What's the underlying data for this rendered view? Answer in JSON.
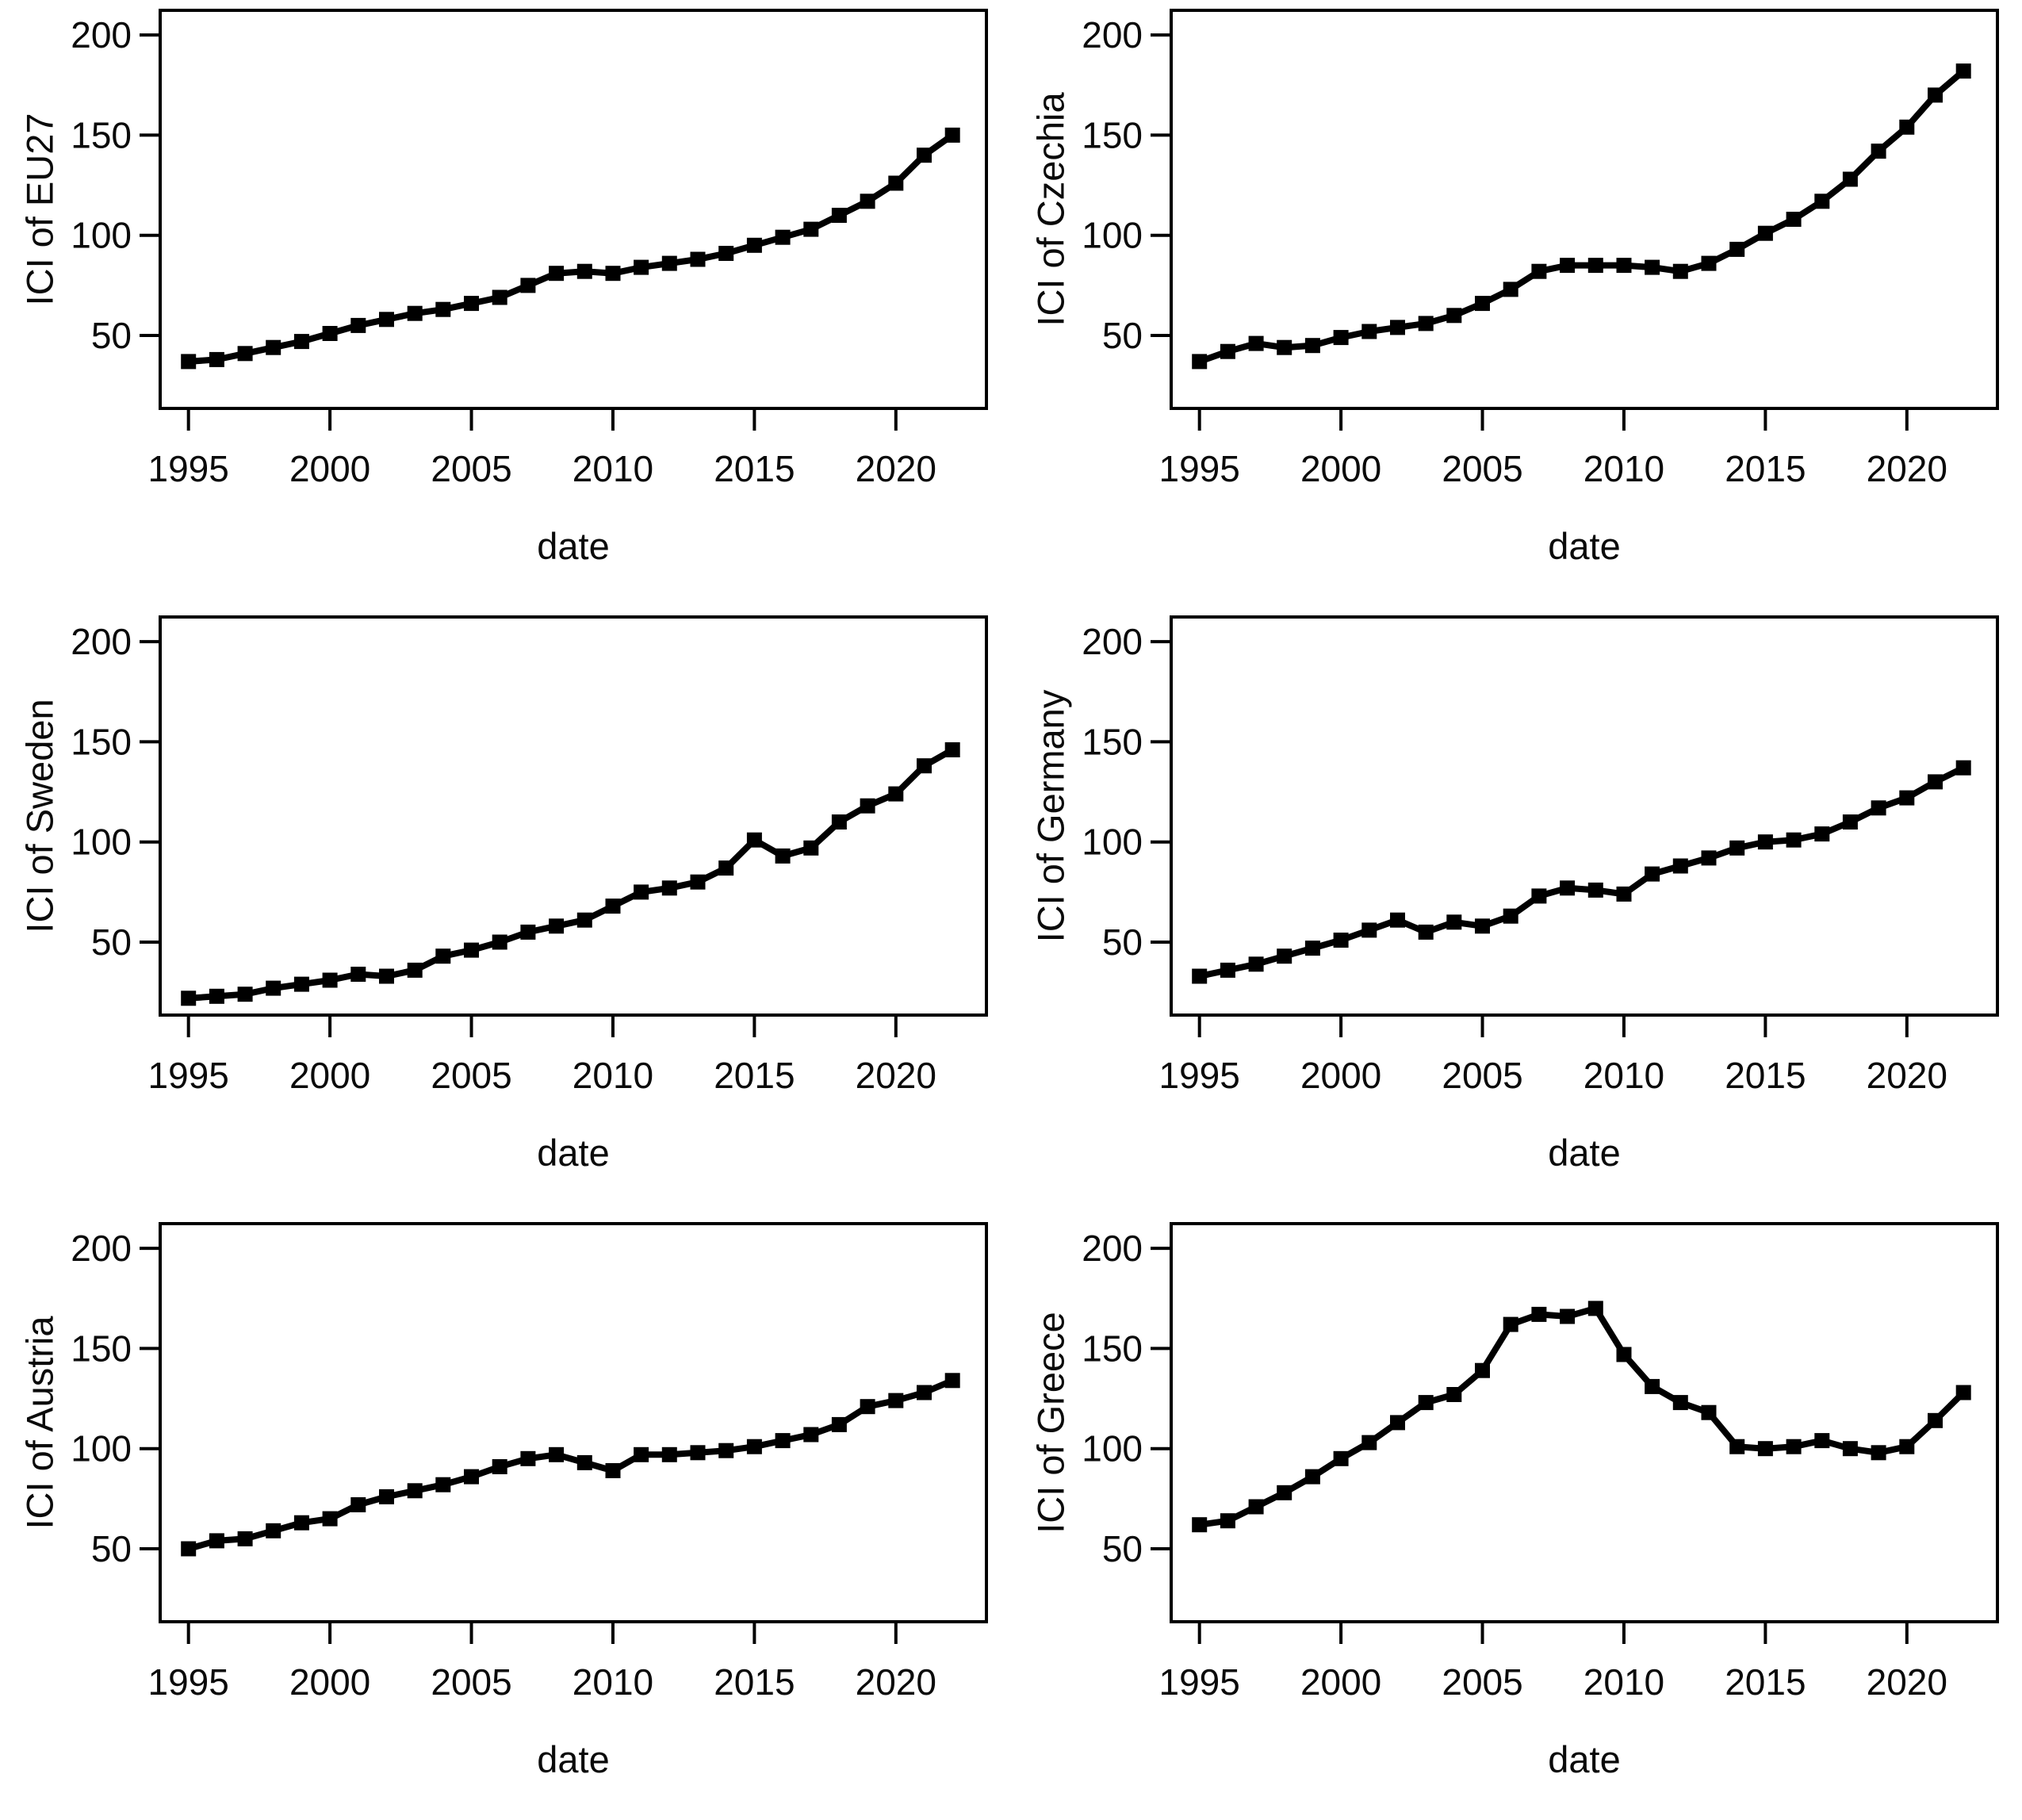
{
  "page": {
    "background": "#ffffff",
    "ink_color": "#000000",
    "text_color": "#0a0a0a"
  },
  "chart_data": [
    {
      "type": "line",
      "title": "",
      "ylabel": "ICI of EU27",
      "xlabel": "date",
      "x": [
        1995,
        1996,
        1997,
        1998,
        1999,
        2000,
        2001,
        2002,
        2003,
        2004,
        2005,
        2006,
        2007,
        2008,
        2009,
        2010,
        2011,
        2012,
        2013,
        2014,
        2015,
        2016,
        2017,
        2018,
        2019,
        2020,
        2021,
        2022
      ],
      "values": [
        37,
        38,
        41,
        44,
        47,
        51,
        55,
        58,
        61,
        63,
        66,
        69,
        75,
        81,
        82,
        81,
        84,
        86,
        88,
        91,
        95,
        99,
        103,
        110,
        117,
        126,
        140,
        150
      ],
      "xticks": [
        1995,
        2000,
        2005,
        2010,
        2015,
        2020
      ],
      "yticks": [
        50,
        100,
        150,
        200
      ],
      "xlim": [
        1994.0,
        2023.2
      ],
      "ylim": [
        13.6,
        212.3
      ],
      "grid": "off",
      "legend": "none",
      "marker": "filled-square",
      "line_color": "#000000"
    },
    {
      "type": "line",
      "title": "",
      "ylabel": "ICI of Czechia",
      "xlabel": "date",
      "x": [
        1995,
        1996,
        1997,
        1998,
        1999,
        2000,
        2001,
        2002,
        2003,
        2004,
        2005,
        2006,
        2007,
        2008,
        2009,
        2010,
        2011,
        2012,
        2013,
        2014,
        2015,
        2016,
        2017,
        2018,
        2019,
        2020,
        2021,
        2022
      ],
      "values": [
        37,
        42,
        46,
        44,
        45,
        49,
        52,
        54,
        56,
        60,
        66,
        73,
        82,
        85,
        85,
        85,
        84,
        82,
        86,
        93,
        101,
        108,
        117,
        128,
        142,
        154,
        170,
        182
      ],
      "xticks": [
        1995,
        2000,
        2005,
        2010,
        2015,
        2020
      ],
      "yticks": [
        50,
        100,
        150,
        200
      ],
      "xlim": [
        1994.0,
        2023.2
      ],
      "ylim": [
        13.6,
        212.3
      ],
      "grid": "off",
      "legend": "none",
      "marker": "filled-square",
      "line_color": "#000000"
    },
    {
      "type": "line",
      "title": "",
      "ylabel": "ICI of Sweden",
      "xlabel": "date",
      "x": [
        1995,
        1996,
        1997,
        1998,
        1999,
        2000,
        2001,
        2002,
        2003,
        2004,
        2005,
        2006,
        2007,
        2008,
        2009,
        2010,
        2011,
        2012,
        2013,
        2014,
        2015,
        2016,
        2017,
        2018,
        2019,
        2020,
        2021,
        2022
      ],
      "values": [
        22,
        23,
        24,
        27,
        29,
        31,
        34,
        33,
        36,
        43,
        46,
        50,
        55,
        58,
        61,
        68,
        75,
        77,
        80,
        87,
        101,
        93,
        97,
        110,
        118,
        124,
        138,
        146
      ],
      "xticks": [
        1995,
        2000,
        2005,
        2010,
        2015,
        2020
      ],
      "yticks": [
        50,
        100,
        150,
        200
      ],
      "xlim": [
        1994.0,
        2023.2
      ],
      "ylim": [
        13.6,
        212.3
      ],
      "grid": "off",
      "legend": "none",
      "marker": "filled-square",
      "line_color": "#000000"
    },
    {
      "type": "line",
      "title": "",
      "ylabel": "ICI of Germany",
      "xlabel": "date",
      "x": [
        1995,
        1996,
        1997,
        1998,
        1999,
        2000,
        2001,
        2002,
        2003,
        2004,
        2005,
        2006,
        2007,
        2008,
        2009,
        2010,
        2011,
        2012,
        2013,
        2014,
        2015,
        2016,
        2017,
        2018,
        2019,
        2020,
        2021,
        2022
      ],
      "values": [
        33,
        36,
        39,
        43,
        47,
        51,
        56,
        61,
        55,
        60,
        58,
        63,
        73,
        77,
        76,
        74,
        84,
        88,
        92,
        97,
        100,
        101,
        104,
        110,
        117,
        122,
        130,
        137
      ],
      "xticks": [
        1995,
        2000,
        2005,
        2010,
        2015,
        2020
      ],
      "yticks": [
        50,
        100,
        150,
        200
      ],
      "xlim": [
        1994.0,
        2023.2
      ],
      "ylim": [
        13.6,
        212.3
      ],
      "grid": "off",
      "legend": "none",
      "marker": "filled-square",
      "line_color": "#000000"
    },
    {
      "type": "line",
      "title": "",
      "ylabel": "ICI of Austria",
      "xlabel": "date",
      "x": [
        1995,
        1996,
        1997,
        1998,
        1999,
        2000,
        2001,
        2002,
        2003,
        2004,
        2005,
        2006,
        2007,
        2008,
        2009,
        2010,
        2011,
        2012,
        2013,
        2014,
        2015,
        2016,
        2017,
        2018,
        2019,
        2020,
        2021,
        2022
      ],
      "values": [
        50,
        54,
        55,
        59,
        63,
        65,
        72,
        76,
        79,
        82,
        86,
        91,
        95,
        97,
        93,
        89,
        97,
        97,
        98,
        99,
        101,
        104,
        107,
        112,
        121,
        124,
        128,
        134
      ],
      "xticks": [
        1995,
        2000,
        2005,
        2010,
        2015,
        2020
      ],
      "yticks": [
        50,
        100,
        150,
        200
      ],
      "xlim": [
        1994.0,
        2023.2
      ],
      "ylim": [
        13.6,
        212.3
      ],
      "grid": "off",
      "legend": "none",
      "marker": "filled-square",
      "line_color": "#000000"
    },
    {
      "type": "line",
      "title": "",
      "ylabel": "ICI of Greece",
      "xlabel": "date",
      "x": [
        1995,
        1996,
        1997,
        1998,
        1999,
        2000,
        2001,
        2002,
        2003,
        2004,
        2005,
        2006,
        2007,
        2008,
        2009,
        2010,
        2011,
        2012,
        2013,
        2014,
        2015,
        2016,
        2017,
        2018,
        2019,
        2020,
        2021,
        2022
      ],
      "values": [
        62,
        64,
        71,
        78,
        86,
        95,
        103,
        113,
        123,
        127,
        139,
        162,
        167,
        166,
        170,
        147,
        131,
        123,
        118,
        101,
        100,
        101,
        104,
        100,
        98,
        101,
        114,
        128
      ],
      "xticks": [
        1995,
        2000,
        2005,
        2010,
        2015,
        2020
      ],
      "yticks": [
        50,
        100,
        150,
        200
      ],
      "xlim": [
        1994.0,
        2023.2
      ],
      "ylim": [
        13.6,
        212.3
      ],
      "grid": "off",
      "legend": "none",
      "marker": "filled-square",
      "line_color": "#000000"
    }
  ]
}
